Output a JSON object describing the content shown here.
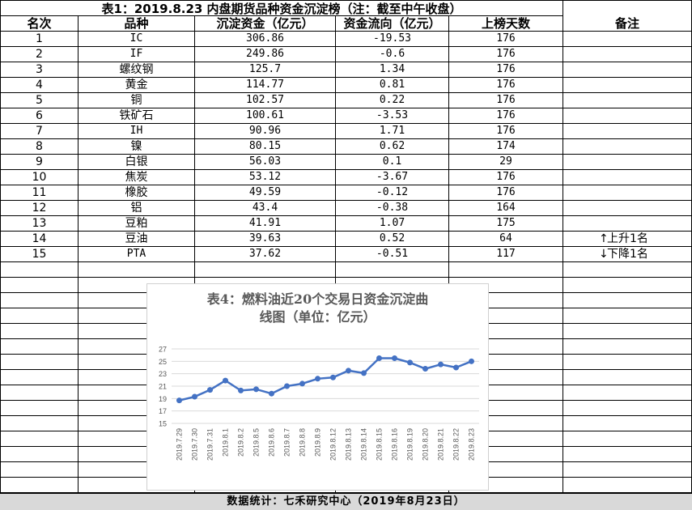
{
  "table": {
    "title": "表1：2019.8.23 内盘期货品种资金沉淀榜（注：截至中午收盘）",
    "headers": [
      "名次",
      "品种",
      "沉淀资金（亿元）",
      "资金流向（亿元）",
      "上榜天数",
      "备注"
    ],
    "rows": [
      {
        "rank": "1",
        "name": "IC",
        "fund": "306.86",
        "flow": "-19.53",
        "days": "176"
      },
      {
        "rank": "2",
        "name": "IF",
        "fund": "249.86",
        "flow": "-0.6",
        "days": "176"
      },
      {
        "rank": "3",
        "name": "螺纹钢",
        "fund": "125.7",
        "flow": "1.34",
        "days": "176"
      },
      {
        "rank": "4",
        "name": "黄金",
        "fund": "114.77",
        "flow": "0.81",
        "days": "176"
      },
      {
        "rank": "5",
        "name": "铜",
        "fund": "102.57",
        "flow": "0.22",
        "days": "176"
      },
      {
        "rank": "6",
        "name": "铁矿石",
        "fund": "100.61",
        "flow": "-3.53",
        "days": "176"
      },
      {
        "rank": "7",
        "name": "IH",
        "fund": "90.96",
        "flow": "1.71",
        "days": "176"
      },
      {
        "rank": "8",
        "name": "镍",
        "fund": "80.15",
        "flow": "0.62",
        "days": "174"
      },
      {
        "rank": "9",
        "name": "白银",
        "fund": "56.03",
        "flow": "0.1",
        "days": "29"
      },
      {
        "rank": "10",
        "name": "焦炭",
        "fund": "53.12",
        "flow": "-3.67",
        "days": "176"
      },
      {
        "rank": "11",
        "name": "橡胶",
        "fund": "49.59",
        "flow": "-0.12",
        "days": "176"
      },
      {
        "rank": "12",
        "name": "铝",
        "fund": "43.4",
        "flow": "-0.38",
        "days": "164"
      },
      {
        "rank": "13",
        "name": "豆粕",
        "fund": "41.91",
        "flow": "1.07",
        "days": "175"
      },
      {
        "rank": "14",
        "name": "豆油",
        "fund": "39.63",
        "flow": "0.52",
        "days": "64"
      },
      {
        "rank": "15",
        "name": "PTA",
        "fund": "37.62",
        "flow": "-0.51",
        "days": "117"
      }
    ],
    "notes": [
      {
        "row": 13,
        "arrow": "↑",
        "text": "上升1名"
      },
      {
        "row": 14,
        "arrow": "↓",
        "text": "下降1名"
      }
    ]
  },
  "chart_data": {
    "type": "line",
    "title_line1": "表4：燃料油近20个交易日资金沉淀曲",
    "title_line2": "线图（单位：亿元）",
    "x": [
      "2019.7.29",
      "2019.7.30",
      "2019.7.31",
      "2019.8.1",
      "2019.8.2",
      "2019.8.5",
      "2019.8.6",
      "2019.8.7",
      "2019.8.8",
      "2019.8.9",
      "2019.8.12",
      "2019.8.13",
      "2019.8.14",
      "2019.8.15",
      "2019.8.16",
      "2019.8.19",
      "2019.8.20",
      "2019.8.21",
      "2019.8.22",
      "2019.8.23"
    ],
    "values": [
      18.7,
      19.3,
      20.4,
      21.9,
      20.3,
      20.5,
      19.8,
      21.0,
      21.4,
      22.2,
      22.4,
      23.5,
      23.1,
      25.5,
      25.5,
      24.8,
      23.8,
      24.5,
      24.0,
      25.0
    ],
    "yticks": [
      "15",
      "17",
      "19",
      "21",
      "23",
      "25",
      "27"
    ],
    "ylim": [
      15,
      27
    ],
    "line_color": "#4472c4",
    "grid": true
  },
  "footer": "数据统计：七禾研究中心（2019年8月23日）"
}
